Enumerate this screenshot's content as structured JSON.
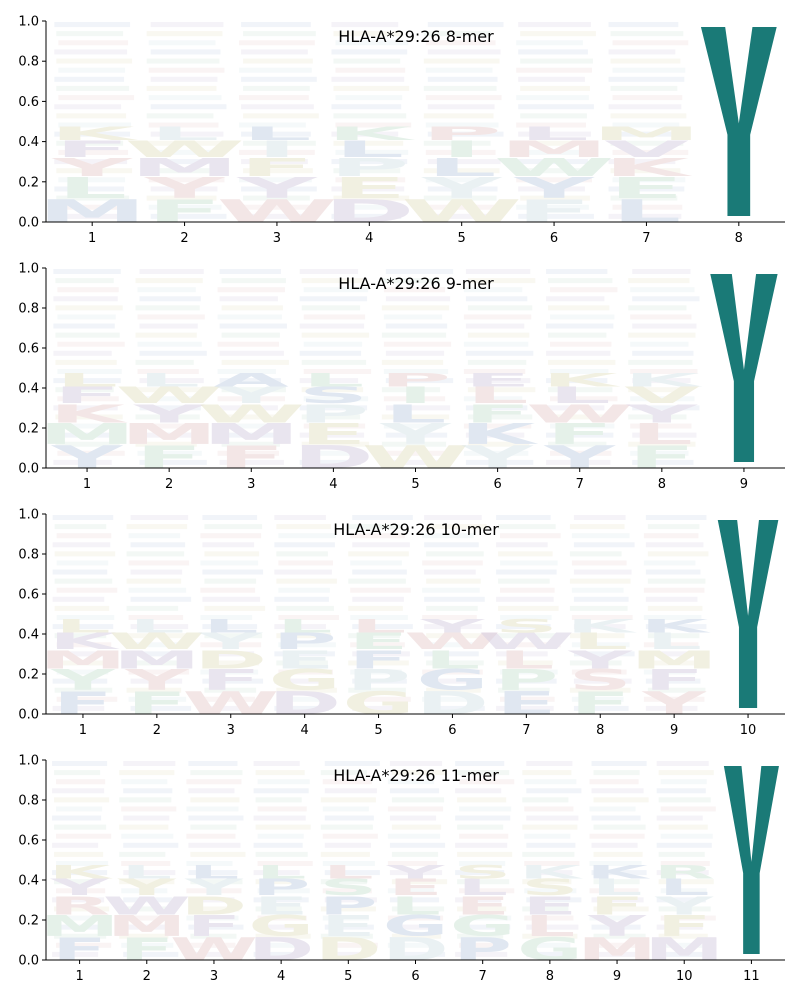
{
  "chart_data": [
    {
      "type": "sequence_logo",
      "title": "HLA-A*29:26 8-mer",
      "positions": [
        1,
        2,
        3,
        4,
        5,
        6,
        7,
        8
      ],
      "ylim": [
        0,
        1
      ],
      "yticks": [
        "0.0",
        "0.2",
        "0.4",
        "0.6",
        "0.8",
        "1.0"
      ],
      "dominant": {
        "position": 8,
        "residue": "Y",
        "height": 0.97
      },
      "faint_residues": [
        [
          "M",
          "L",
          "Y",
          "F",
          "K"
        ],
        [
          "F",
          "Y",
          "M",
          "W",
          "L"
        ],
        [
          "W",
          "Y",
          "F",
          "I",
          "L"
        ],
        [
          "D",
          "E",
          "P",
          "L",
          "K"
        ],
        [
          "W",
          "Y",
          "L",
          "I",
          "P"
        ],
        [
          "F",
          "Y",
          "W",
          "M",
          "L"
        ],
        [
          "L",
          "E",
          "K",
          "V",
          "M"
        ],
        []
      ]
    },
    {
      "type": "sequence_logo",
      "title": "HLA-A*29:26 9-mer",
      "positions": [
        1,
        2,
        3,
        4,
        5,
        6,
        7,
        8,
        9
      ],
      "ylim": [
        0,
        1
      ],
      "yticks": [
        "0.0",
        "0.2",
        "0.4",
        "0.6",
        "0.8",
        "1.0"
      ],
      "dominant": {
        "position": 9,
        "residue": "Y",
        "height": 0.97
      },
      "faint_residues": [
        [
          "Y",
          "M",
          "K",
          "F",
          "L"
        ],
        [
          "F",
          "M",
          "Y",
          "W",
          "L"
        ],
        [
          "F",
          "M",
          "W",
          "Y",
          "A"
        ],
        [
          "D",
          "E",
          "P",
          "S",
          "L"
        ],
        [
          "W",
          "Y",
          "L",
          "I",
          "P"
        ],
        [
          "Y",
          "K",
          "F",
          "L",
          "E"
        ],
        [
          "Y",
          "F",
          "W",
          "L",
          "K"
        ],
        [
          "F",
          "L",
          "Y",
          "V",
          "K"
        ],
        []
      ]
    },
    {
      "type": "sequence_logo",
      "title": "HLA-A*29:26 10-mer",
      "positions": [
        1,
        2,
        3,
        4,
        5,
        6,
        7,
        8,
        9,
        10
      ],
      "ylim": [
        0,
        1
      ],
      "yticks": [
        "0.0",
        "0.2",
        "0.4",
        "0.6",
        "0.8",
        "1.0"
      ],
      "dominant": {
        "position": 10,
        "residue": "Y",
        "height": 0.97
      },
      "faint_residues": [
        [
          "F",
          "Y",
          "M",
          "K",
          "L"
        ],
        [
          "F",
          "Y",
          "M",
          "W",
          "L"
        ],
        [
          "W",
          "F",
          "D",
          "Y",
          "L"
        ],
        [
          "D",
          "G",
          "E",
          "P",
          "L"
        ],
        [
          "G",
          "P",
          "F",
          "E",
          "L"
        ],
        [
          "D",
          "G",
          "L",
          "W",
          "Y"
        ],
        [
          "E",
          "P",
          "L",
          "W",
          "S"
        ],
        [
          "F",
          "S",
          "Y",
          "L",
          "K"
        ],
        [
          "Y",
          "F",
          "M",
          "L",
          "K"
        ],
        []
      ]
    },
    {
      "type": "sequence_logo",
      "title": "HLA-A*29:26 11-mer",
      "positions": [
        1,
        2,
        3,
        4,
        5,
        6,
        7,
        8,
        9,
        10,
        11
      ],
      "ylim": [
        0,
        1
      ],
      "yticks": [
        "0.0",
        "0.2",
        "0.4",
        "0.6",
        "0.8",
        "1.0"
      ],
      "dominant": {
        "position": 11,
        "residue": "Y",
        "height": 0.97
      },
      "faint_residues": [
        [
          "F",
          "M",
          "R",
          "Y",
          "K"
        ],
        [
          "F",
          "M",
          "W",
          "Y",
          "L"
        ],
        [
          "W",
          "F",
          "D",
          "Y",
          "L"
        ],
        [
          "D",
          "G",
          "E",
          "P",
          "L"
        ],
        [
          "D",
          "E",
          "P",
          "S",
          "L"
        ],
        [
          "D",
          "G",
          "L",
          "E",
          "Y"
        ],
        [
          "P",
          "G",
          "E",
          "L",
          "S"
        ],
        [
          "G",
          "L",
          "E",
          "S",
          "K"
        ],
        [
          "M",
          "Y",
          "F",
          "L",
          "K"
        ],
        [
          "M",
          "F",
          "Y",
          "L",
          "R"
        ],
        []
      ]
    }
  ],
  "colors": {
    "dominant": "#1a7a77",
    "faint_palette": [
      "#c6d4e6",
      "#cfe5d8",
      "#ead2d2",
      "#d8cfe2",
      "#e6e3c8",
      "#d9e6ea"
    ]
  }
}
